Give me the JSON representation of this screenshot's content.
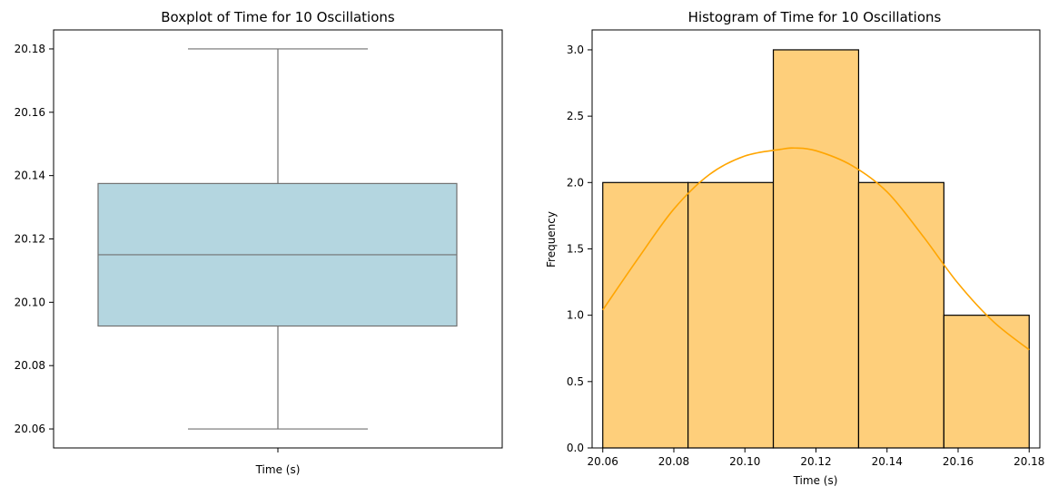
{
  "chart_data": [
    {
      "type": "box",
      "title": "Boxplot of Time for 10 Oscillations",
      "xlabel": "Time (s)",
      "ylabel": "",
      "ylim": [
        20.054,
        20.186
      ],
      "yticks": [
        "20.06",
        "20.08",
        "20.10",
        "20.12",
        "20.14",
        "20.16",
        "20.18"
      ],
      "box": {
        "min": 20.06,
        "q1": 20.0925,
        "median": 20.115,
        "q3": 20.1375,
        "max": 20.18
      },
      "colors": {
        "box_fill": "#b4d6e0",
        "lines": "#707070"
      }
    },
    {
      "type": "bar",
      "title": "Histogram of Time for 10 Oscillations",
      "xlabel": "Time (s)",
      "ylabel": "Frequency",
      "xlim": [
        20.057,
        20.183
      ],
      "ylim": [
        0,
        3.15
      ],
      "xticks": [
        "20.06",
        "20.08",
        "20.10",
        "20.12",
        "20.14",
        "20.16",
        "20.18"
      ],
      "yticks": [
        "0.0",
        "0.5",
        "1.0",
        "1.5",
        "2.0",
        "2.5",
        "3.0"
      ],
      "bins": [
        {
          "start": 20.06,
          "end": 20.084,
          "count": 2
        },
        {
          "start": 20.084,
          "end": 20.108,
          "count": 2
        },
        {
          "start": 20.108,
          "end": 20.132,
          "count": 3
        },
        {
          "start": 20.132,
          "end": 20.156,
          "count": 2
        },
        {
          "start": 20.156,
          "end": 20.18,
          "count": 1
        }
      ],
      "kde": {
        "x": [
          20.06,
          20.07,
          20.08,
          20.09,
          20.1,
          20.11,
          20.114,
          20.12,
          20.13,
          20.14,
          20.15,
          20.16,
          20.17,
          20.18
        ],
        "y": [
          1.04,
          1.43,
          1.8,
          2.06,
          2.2,
          2.25,
          2.26,
          2.24,
          2.13,
          1.93,
          1.6,
          1.24,
          0.95,
          0.74
        ]
      },
      "colors": {
        "bar_fill": "#fecf7b",
        "bar_edge": "#000000",
        "kde_line": "#ffa500"
      }
    }
  ]
}
